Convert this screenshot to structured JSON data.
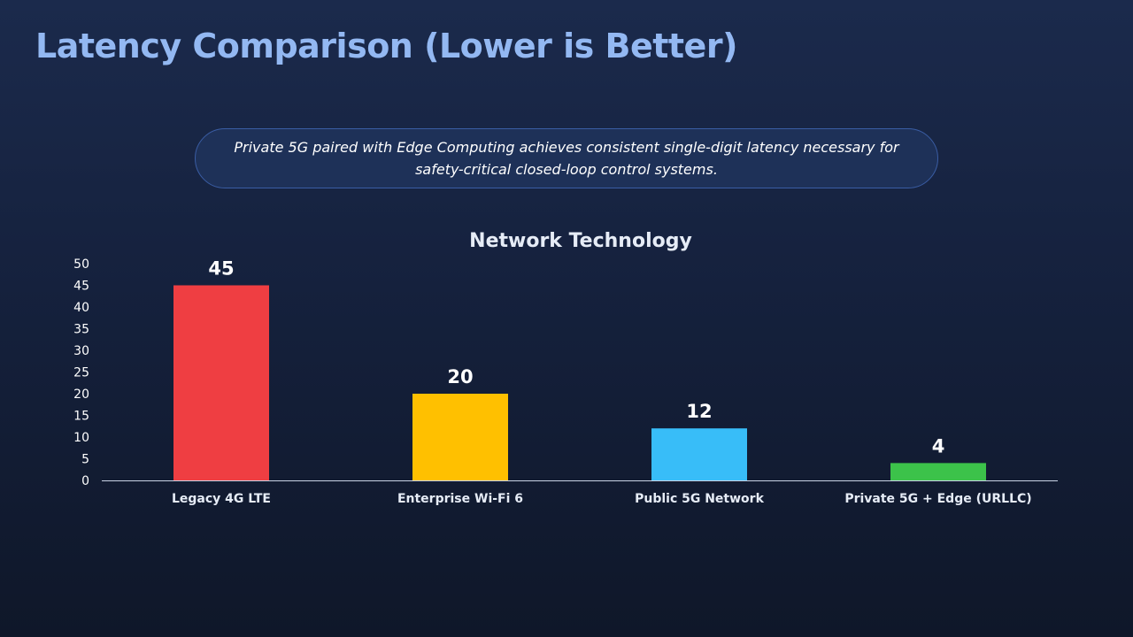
{
  "slide": {
    "title": "Latency Comparison (Lower is Better)",
    "callout": "Private 5G paired with Edge Computing achieves consistent single-digit latency necessary for safety-critical closed-loop control systems."
  },
  "chart_data": {
    "type": "bar",
    "title": "Network Technology",
    "xlabel": "",
    "ylabel": "",
    "categories": [
      "Legacy 4G LTE",
      "Enterprise Wi-Fi 6",
      "Public 5G Network",
      "Private 5G + Edge (URLLC)"
    ],
    "values": [
      45,
      20,
      12,
      4
    ],
    "colors": [
      "#ef3e42",
      "#ffc000",
      "#38bdf8",
      "#3cc24a"
    ],
    "ylim": [
      0,
      50
    ],
    "yticks": [
      0,
      5,
      10,
      15,
      20,
      25,
      30,
      35,
      40,
      45,
      50
    ],
    "data_labels": true,
    "grid": false,
    "legend": "none"
  }
}
